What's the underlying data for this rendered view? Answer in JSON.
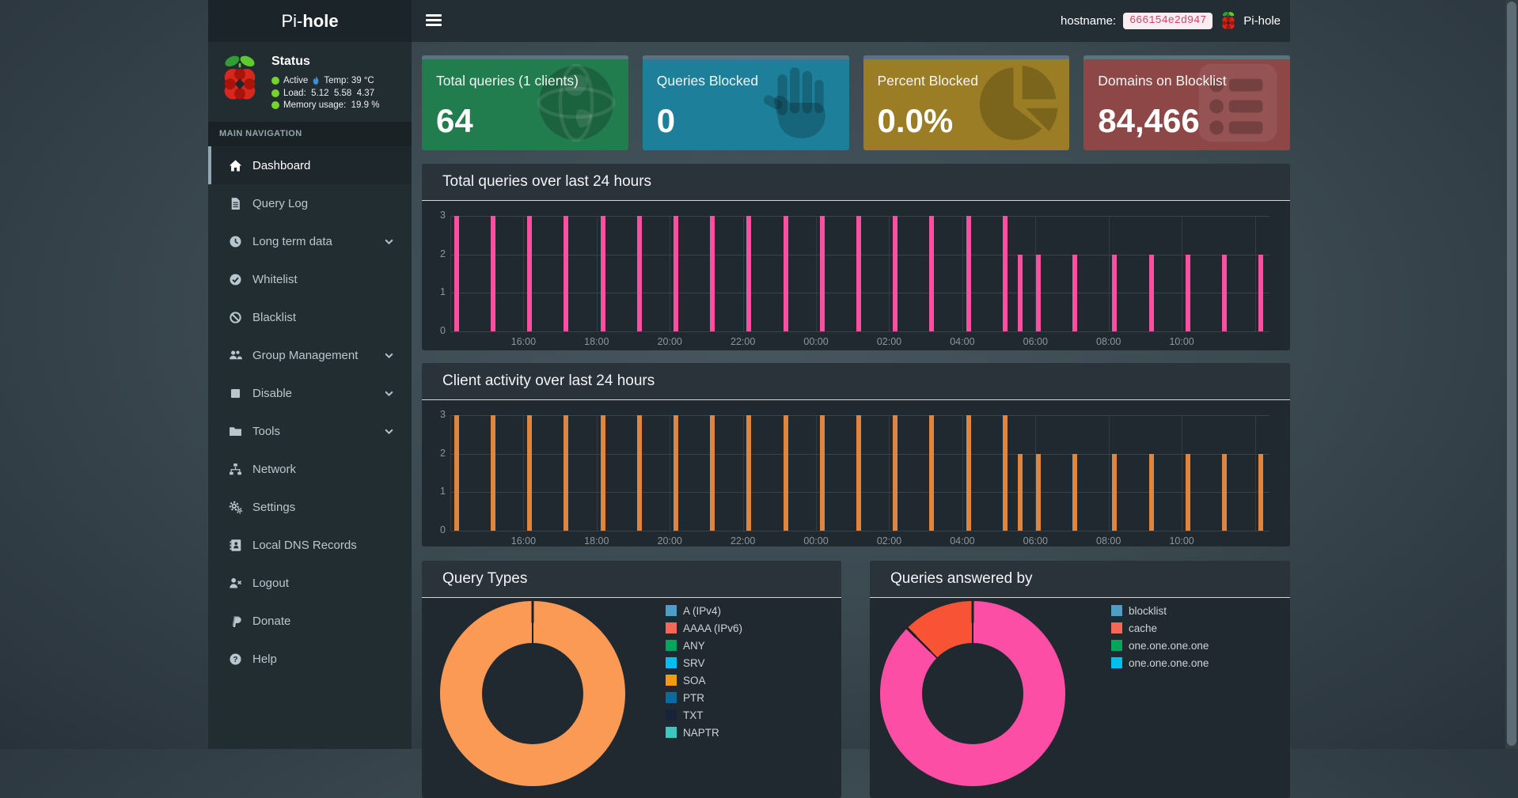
{
  "navbar": {
    "brand_prefix": "Pi-",
    "brand_bold": "hole",
    "hostname_label": "hostname:",
    "hostname_value": "666154e2d947",
    "app_name": "Pi-hole"
  },
  "sidebar": {
    "status": {
      "title": "Status",
      "active": "Active",
      "temp": "Temp: 39 °C",
      "load": "Load:  5.12  5.58  4.37",
      "memory": "Memory usage:  19.9 %"
    },
    "section_label": "MAIN NAVIGATION",
    "items": [
      {
        "key": "dashboard",
        "label": "Dashboard",
        "icon": "home",
        "active": true
      },
      {
        "key": "query-log",
        "label": "Query Log",
        "icon": "file"
      },
      {
        "key": "long-term-data",
        "label": "Long term data",
        "icon": "clock",
        "chevron": true
      },
      {
        "key": "whitelist",
        "label": "Whitelist",
        "icon": "check-circle"
      },
      {
        "key": "blacklist",
        "label": "Blacklist",
        "icon": "ban"
      },
      {
        "key": "group-management",
        "label": "Group Management",
        "icon": "users",
        "chevron": true
      },
      {
        "key": "disable",
        "label": "Disable",
        "icon": "square",
        "chevron": true
      },
      {
        "key": "tools",
        "label": "Tools",
        "icon": "folder",
        "chevron": true
      },
      {
        "key": "network",
        "label": "Network",
        "icon": "sitemap"
      },
      {
        "key": "settings",
        "label": "Settings",
        "icon": "gears"
      },
      {
        "key": "local-dns-records",
        "label": "Local DNS Records",
        "icon": "address-book"
      },
      {
        "key": "logout",
        "label": "Logout",
        "icon": "user-times"
      },
      {
        "key": "donate",
        "label": "Donate",
        "icon": "paypal"
      },
      {
        "key": "help",
        "label": "Help",
        "icon": "question-circle"
      }
    ]
  },
  "cards": [
    {
      "key": "total-queries",
      "title": "Total queries (1 clients)",
      "value": "64",
      "color": "#217c4e",
      "icon": "globe"
    },
    {
      "key": "queries-blocked",
      "title": "Queries Blocked",
      "value": "0",
      "color": "#1d7f99",
      "icon": "hand"
    },
    {
      "key": "percent-blocked",
      "title": "Percent Blocked",
      "value": "0.0%",
      "color": "#9a7d24",
      "icon": "pie"
    },
    {
      "key": "domains-blocklist",
      "title": "Domains on Blocklist",
      "value": "84,466",
      "color": "#8d4746",
      "icon": "list"
    }
  ],
  "chart_data": [
    {
      "id": "queries-over-24h",
      "type": "bar",
      "title": "Total queries over last 24 hours",
      "color": "#fd4fa1",
      "ylim": [
        0,
        3
      ],
      "yticks": [
        0,
        1,
        2,
        3
      ],
      "xticks": [
        "16:00",
        "18:00",
        "20:00",
        "22:00",
        "00:00",
        "02:00",
        "04:00",
        "06:00",
        "08:00",
        "10:00"
      ],
      "x_domain_minutes": 1344,
      "tick_interval_minutes": 120,
      "points": [
        {
          "t": "14:10",
          "m": 10,
          "v": 3
        },
        {
          "t": "15:10",
          "m": 70,
          "v": 3
        },
        {
          "t": "16:10",
          "m": 130,
          "v": 3
        },
        {
          "t": "17:10",
          "m": 190,
          "v": 3
        },
        {
          "t": "18:10",
          "m": 250,
          "v": 3
        },
        {
          "t": "19:10",
          "m": 310,
          "v": 3
        },
        {
          "t": "20:10",
          "m": 370,
          "v": 3
        },
        {
          "t": "21:10",
          "m": 430,
          "v": 3
        },
        {
          "t": "22:10",
          "m": 490,
          "v": 3
        },
        {
          "t": "23:10",
          "m": 550,
          "v": 3
        },
        {
          "t": "00:10",
          "m": 610,
          "v": 3
        },
        {
          "t": "01:10",
          "m": 670,
          "v": 3
        },
        {
          "t": "02:10",
          "m": 730,
          "v": 3
        },
        {
          "t": "03:10",
          "m": 790,
          "v": 3
        },
        {
          "t": "04:10",
          "m": 850,
          "v": 3
        },
        {
          "t": "05:10",
          "m": 910,
          "v": 3
        },
        {
          "t": "05:35",
          "m": 935,
          "v": 2
        },
        {
          "t": "06:05",
          "m": 965,
          "v": 2
        },
        {
          "t": "07:05",
          "m": 1025,
          "v": 2
        },
        {
          "t": "08:10",
          "m": 1090,
          "v": 2
        },
        {
          "t": "09:10",
          "m": 1150,
          "v": 2
        },
        {
          "t": "10:10",
          "m": 1210,
          "v": 2
        },
        {
          "t": "11:10",
          "m": 1270,
          "v": 2
        },
        {
          "t": "12:10",
          "m": 1330,
          "v": 2
        }
      ]
    },
    {
      "id": "client-activity-over-24h",
      "type": "bar",
      "title": "Client activity over last 24 hours",
      "color": "#e08540",
      "ylim": [
        0,
        3
      ],
      "yticks": [
        0,
        1,
        2,
        3
      ],
      "xticks": [
        "16:00",
        "18:00",
        "20:00",
        "22:00",
        "00:00",
        "02:00",
        "04:00",
        "06:00",
        "08:00",
        "10:00"
      ],
      "x_domain_minutes": 1344,
      "tick_interval_minutes": 120,
      "points": [
        {
          "t": "14:10",
          "m": 10,
          "v": 3
        },
        {
          "t": "15:10",
          "m": 70,
          "v": 3
        },
        {
          "t": "16:10",
          "m": 130,
          "v": 3
        },
        {
          "t": "17:10",
          "m": 190,
          "v": 3
        },
        {
          "t": "18:10",
          "m": 250,
          "v": 3
        },
        {
          "t": "19:10",
          "m": 310,
          "v": 3
        },
        {
          "t": "20:10",
          "m": 370,
          "v": 3
        },
        {
          "t": "21:10",
          "m": 430,
          "v": 3
        },
        {
          "t": "22:10",
          "m": 490,
          "v": 3
        },
        {
          "t": "23:10",
          "m": 550,
          "v": 3
        },
        {
          "t": "00:10",
          "m": 610,
          "v": 3
        },
        {
          "t": "01:10",
          "m": 670,
          "v": 3
        },
        {
          "t": "02:10",
          "m": 730,
          "v": 3
        },
        {
          "t": "03:10",
          "m": 790,
          "v": 3
        },
        {
          "t": "04:10",
          "m": 850,
          "v": 3
        },
        {
          "t": "05:10",
          "m": 910,
          "v": 3
        },
        {
          "t": "05:35",
          "m": 935,
          "v": 2
        },
        {
          "t": "06:05",
          "m": 965,
          "v": 2
        },
        {
          "t": "07:05",
          "m": 1025,
          "v": 2
        },
        {
          "t": "08:10",
          "m": 1090,
          "v": 2
        },
        {
          "t": "09:10",
          "m": 1150,
          "v": 2
        },
        {
          "t": "10:10",
          "m": 1210,
          "v": 2
        },
        {
          "t": "11:10",
          "m": 1270,
          "v": 2
        },
        {
          "t": "12:10",
          "m": 1330,
          "v": 2
        }
      ]
    },
    {
      "id": "query-types",
      "type": "pie",
      "title": "Query Types",
      "slices": [
        {
          "label": "SOA",
          "value": 100,
          "color": "#fb9a55"
        }
      ],
      "legend": [
        {
          "label": "A (IPv4)",
          "color": "#4d9dc6"
        },
        {
          "label": "AAAA (IPv6)",
          "color": "#f56954"
        },
        {
          "label": "ANY",
          "color": "#02a65a"
        },
        {
          "label": "SRV",
          "color": "#00c0ef"
        },
        {
          "label": "SOA",
          "color": "#f39c12"
        },
        {
          "label": "PTR",
          "color": "#0a6aa1"
        },
        {
          "label": "TXT",
          "color": "#16243a"
        },
        {
          "label": "NAPTR",
          "color": "#3ac9c0"
        }
      ]
    },
    {
      "id": "queries-answered-by",
      "type": "pie",
      "title": "Queries answered by",
      "slices": [
        {
          "label": "one.one.one.one",
          "value": 87.5,
          "color": "#fd4ea6"
        },
        {
          "label": "cache",
          "value": 12.5,
          "color": "#f95336"
        }
      ],
      "legend": [
        {
          "label": "blocklist",
          "color": "#4d9dc6"
        },
        {
          "label": "cache",
          "color": "#f56954"
        },
        {
          "label": "one.one.one.one",
          "color": "#02a65a"
        },
        {
          "label": "one.one.one.one",
          "color": "#00c0ef"
        }
      ]
    }
  ]
}
